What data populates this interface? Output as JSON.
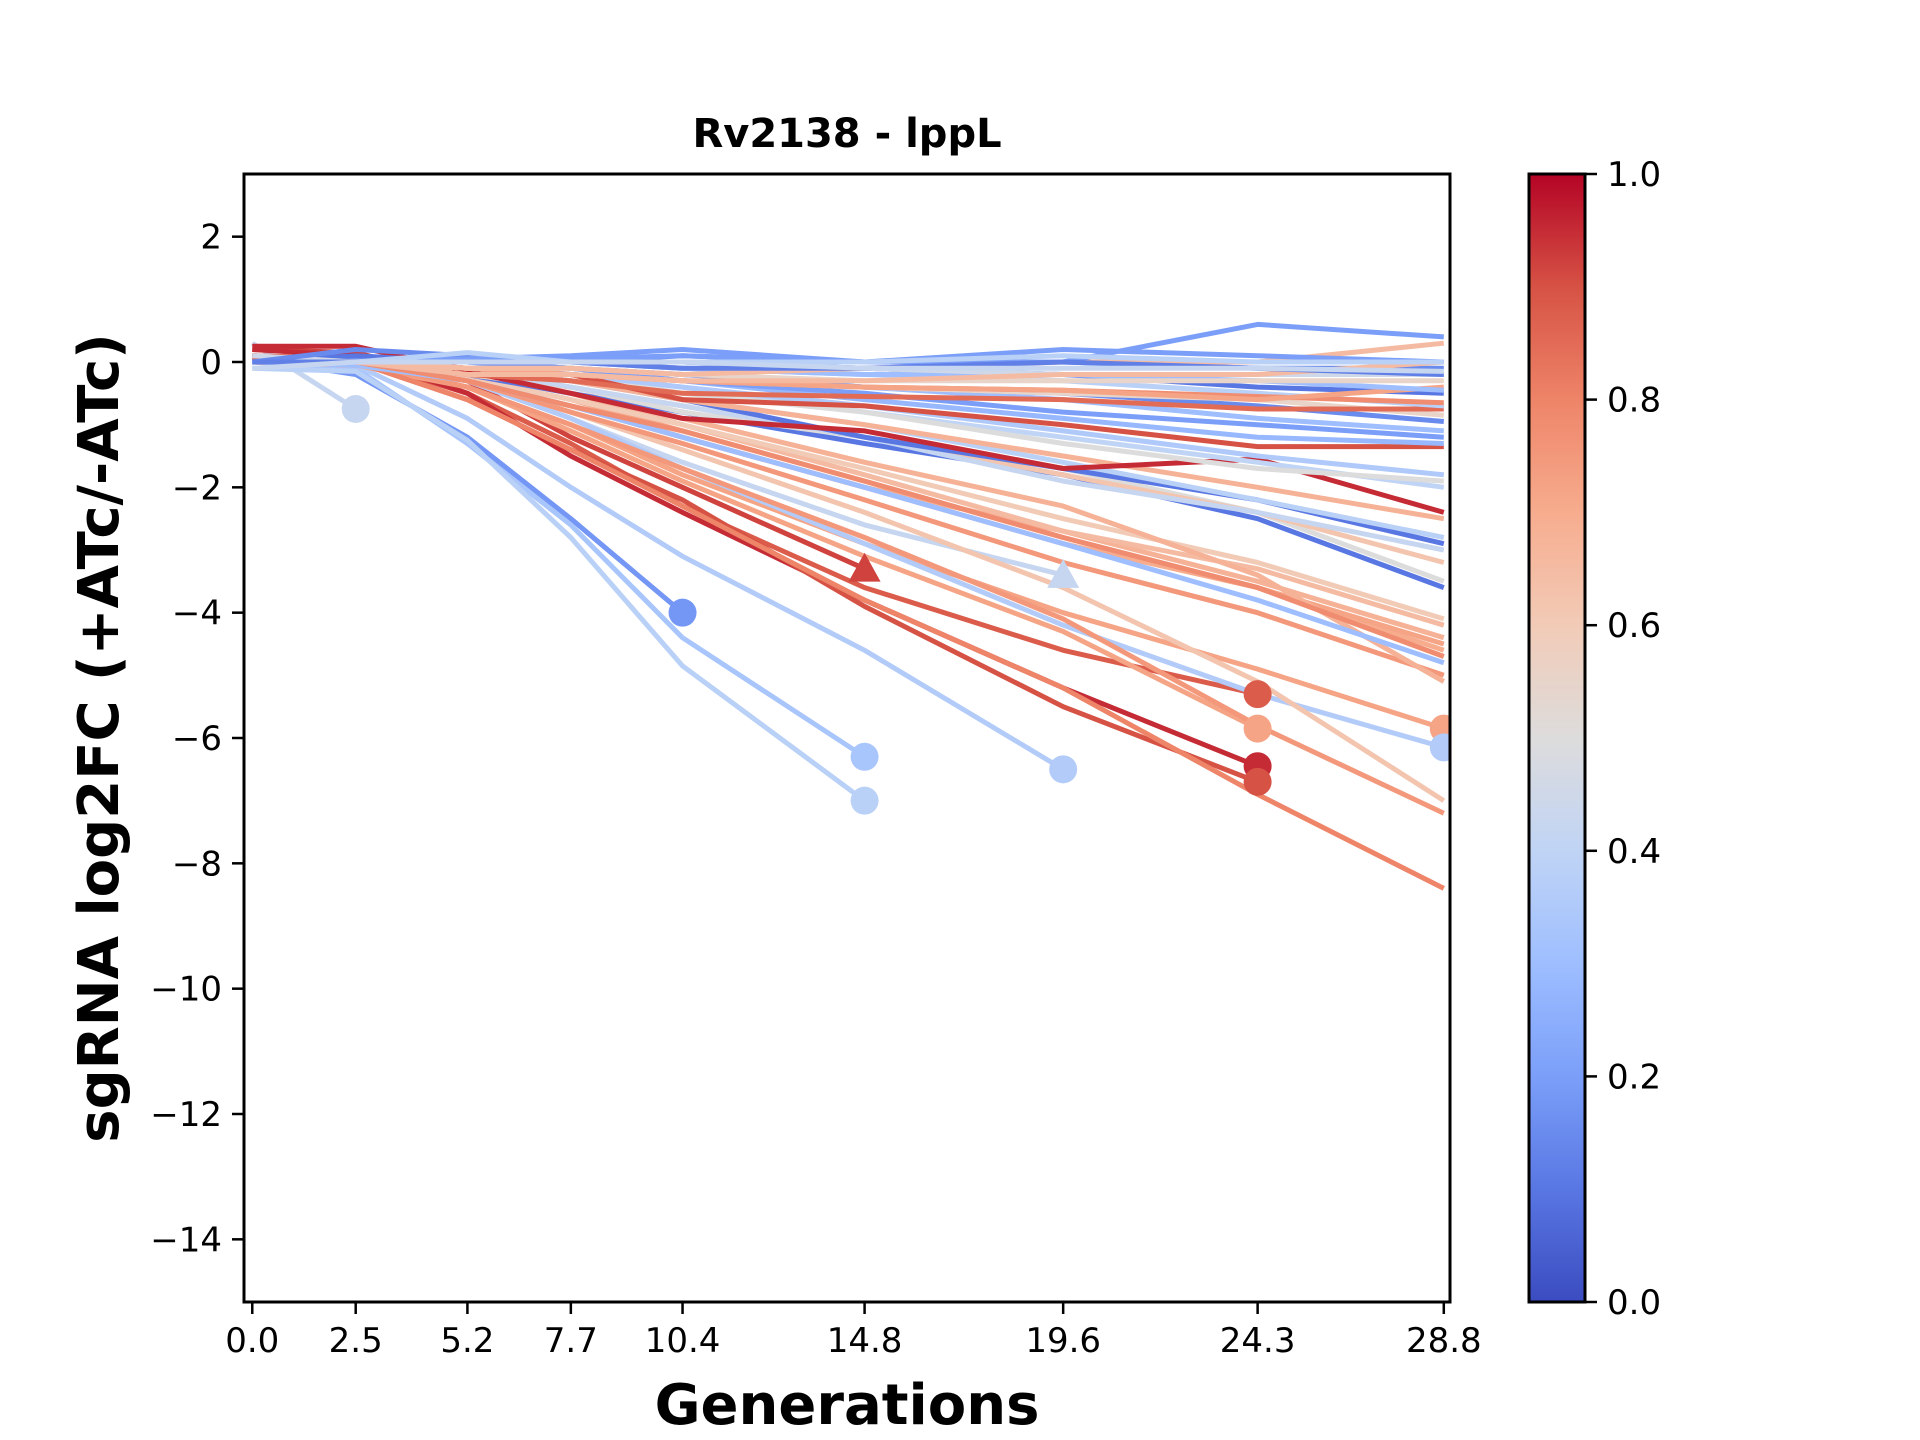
{
  "chart_data": {
    "type": "line",
    "title": "Rv2138 - lppL",
    "xlabel": "Generations",
    "ylabel": "sgRNA log2FC (+ATc/-ATc)",
    "xlim": [
      -0.2,
      28.95
    ],
    "ylim": [
      -15,
      3
    ],
    "x": [
      0.0,
      2.5,
      5.2,
      7.7,
      10.4,
      14.8,
      19.6,
      24.3,
      28.8
    ],
    "xtick_labels": [
      "0.0",
      "2.5",
      "5.2",
      "7.7",
      "10.4",
      "14.8",
      "19.6",
      "24.3",
      "28.8"
    ],
    "yticks": [
      2,
      0,
      -2,
      -4,
      -6,
      -8,
      -10,
      -12,
      -14
    ],
    "ytick_labels": [
      "2",
      "0",
      "−2",
      "−4",
      "−6",
      "−8",
      "−10",
      "−12",
      "−14"
    ],
    "grid": false,
    "legend": "none",
    "colorbar": {
      "colormap": "coolwarm",
      "range": [
        0.0,
        1.0
      ],
      "ticks": [
        0.0,
        0.2,
        0.4,
        0.6,
        0.8,
        1.0
      ],
      "tick_labels": [
        "0.0",
        "0.2",
        "0.4",
        "0.6",
        "0.8",
        "1.0"
      ],
      "stops": [
        [
          0.0,
          "#3b4cc0"
        ],
        [
          0.1,
          "#5977e3"
        ],
        [
          0.2,
          "#7b9ff9"
        ],
        [
          0.3,
          "#9ebeff"
        ],
        [
          0.4,
          "#c0d4f5"
        ],
        [
          0.5,
          "#dddcdc"
        ],
        [
          0.6,
          "#f2cbb7"
        ],
        [
          0.7,
          "#f7ac8e"
        ],
        [
          0.8,
          "#ee8468"
        ],
        [
          0.9,
          "#d65244"
        ],
        [
          1.0,
          "#b40426"
        ]
      ]
    },
    "series": [
      {
        "c": 0.42,
        "y": [
          0.3,
          -0.75
        ],
        "marker": "o"
      },
      {
        "c": 0.18,
        "y": [
          0.05,
          -0.2,
          -1.2,
          -2.5,
          -4.0
        ],
        "marker": "o"
      },
      {
        "c": 0.33,
        "y": [
          0.0,
          -0.1,
          -1.3,
          -2.6,
          -4.4,
          -6.3
        ],
        "marker": "o"
      },
      {
        "c": 0.38,
        "y": [
          -0.1,
          -0.15,
          -1.25,
          -2.8,
          -4.85,
          -7.0
        ],
        "marker": "o"
      },
      {
        "c": 0.36,
        "y": [
          0.0,
          -0.05,
          -0.9,
          -2.0,
          -3.1,
          -4.6,
          -6.5
        ],
        "marker": "o"
      },
      {
        "c": 0.92,
        "y": [
          0.2,
          0.15,
          -0.3,
          -1.2,
          -2.0,
          -3.3
        ],
        "marker": "^"
      },
      {
        "c": 0.42,
        "y": [
          0.1,
          0.0,
          -0.3,
          -0.9,
          -1.6,
          -2.6,
          -3.4
        ],
        "marker": "^"
      },
      {
        "c": 0.88,
        "y": [
          0.1,
          0.05,
          -0.5,
          -1.3,
          -2.3,
          -3.6,
          -4.6,
          -5.3
        ],
        "marker": "o"
      },
      {
        "c": 0.72,
        "y": [
          0.05,
          0.0,
          -0.4,
          -1.1,
          -1.9,
          -3.1,
          -4.3,
          -5.85
        ],
        "marker": "o"
      },
      {
        "c": 0.95,
        "y": [
          0.2,
          0.1,
          -0.5,
          -1.5,
          -2.4,
          -3.8,
          -5.2,
          -6.45
        ],
        "marker": "o"
      },
      {
        "c": 0.9,
        "y": [
          0.1,
          0.0,
          -0.6,
          -1.4,
          -2.2,
          -3.9,
          -5.5,
          -6.7
        ],
        "marker": "o"
      },
      {
        "c": 0.72,
        "y": [
          0.0,
          -0.05,
          -0.4,
          -1.0,
          -1.8,
          -2.9,
          -4.0,
          -4.9,
          -5.85
        ],
        "marker": "o"
      },
      {
        "c": 0.36,
        "y": [
          0.0,
          0.0,
          -0.3,
          -0.9,
          -1.7,
          -2.9,
          -4.2,
          -5.3,
          -6.15
        ],
        "marker": "o"
      },
      {
        "c": 0.8,
        "y": [
          0.1,
          0.0,
          -0.6,
          -1.4,
          -2.3,
          -3.8,
          -5.2,
          -6.9,
          -8.4
        ]
      },
      {
        "c": 0.75,
        "y": [
          0.05,
          0.0,
          -0.4,
          -1.0,
          -1.7,
          -2.8,
          -4.1,
          -5.8,
          -7.2
        ]
      },
      {
        "c": 0.62,
        "y": [
          0.0,
          0.0,
          -0.3,
          -0.8,
          -1.4,
          -2.4,
          -3.6,
          -5.1,
          -7.0
        ]
      },
      {
        "c": 0.75,
        "y": [
          0.0,
          -0.05,
          -0.3,
          -0.8,
          -1.3,
          -2.2,
          -3.2,
          -4.0,
          -5.0
        ]
      },
      {
        "c": 0.7,
        "y": [
          0.05,
          0.0,
          -0.3,
          -0.7,
          -1.2,
          -2.0,
          -2.9,
          -3.6,
          -4.6
        ]
      },
      {
        "c": 0.72,
        "y": [
          0.0,
          0.0,
          -0.25,
          -0.6,
          -1.1,
          -1.9,
          -2.8,
          -3.6,
          -4.5
        ]
      },
      {
        "c": 0.68,
        "y": [
          0.0,
          -0.05,
          -0.3,
          -0.7,
          -1.2,
          -2.0,
          -2.7,
          -3.5,
          -4.4
        ]
      },
      {
        "c": 0.65,
        "y": [
          0.0,
          0.0,
          -0.2,
          -0.5,
          -1.0,
          -1.8,
          -2.7,
          -3.3,
          -4.2
        ]
      },
      {
        "c": 0.6,
        "y": [
          0.0,
          0.0,
          -0.25,
          -0.6,
          -1.0,
          -1.7,
          -2.5,
          -3.2,
          -4.1
        ]
      },
      {
        "c": 0.68,
        "y": [
          0.05,
          0.0,
          -0.2,
          -0.5,
          -0.9,
          -1.6,
          -2.3,
          -3.4,
          -5.1
        ]
      },
      {
        "c": 0.3,
        "y": [
          0.0,
          -0.05,
          -0.3,
          -0.7,
          -1.2,
          -2.0,
          -2.9,
          -3.8,
          -4.8
        ]
      },
      {
        "c": 0.78,
        "y": [
          0.0,
          0.0,
          -0.3,
          -0.7,
          -1.1,
          -1.9,
          -2.8,
          -3.6,
          -4.7
        ]
      },
      {
        "c": 0.1,
        "y": [
          0.0,
          0.0,
          -0.2,
          -0.5,
          -0.8,
          -1.3,
          -1.8,
          -2.5,
          -3.6
        ]
      },
      {
        "c": 0.5,
        "y": [
          0.0,
          0.0,
          -0.2,
          -0.4,
          -0.8,
          -1.2,
          -1.7,
          -2.4,
          -3.5
        ]
      },
      {
        "c": 0.62,
        "y": [
          0.0,
          0.0,
          -0.2,
          -0.4,
          -0.7,
          -1.2,
          -1.8,
          -2.4,
          -3.2
        ]
      },
      {
        "c": 0.42,
        "y": [
          0.0,
          0.0,
          -0.1,
          -0.4,
          -0.7,
          -1.2,
          -1.9,
          -2.4,
          -3.0
        ]
      },
      {
        "c": 0.1,
        "y": [
          0.0,
          0.0,
          -0.1,
          -0.3,
          -0.6,
          -1.2,
          -1.7,
          -2.2,
          -2.9
        ]
      },
      {
        "c": 0.38,
        "y": [
          0.0,
          0.0,
          -0.1,
          -0.3,
          -0.6,
          -1.0,
          -1.6,
          -2.2,
          -2.8
        ]
      },
      {
        "c": 0.68,
        "y": [
          0.0,
          0.0,
          -0.1,
          -0.3,
          -0.6,
          -1.0,
          -1.5,
          -2.0,
          -2.5
        ]
      },
      {
        "c": 0.95,
        "y": [
          0.25,
          0.25,
          -0.15,
          -0.5,
          -0.9,
          -1.1,
          -1.7,
          -1.55,
          -2.4
        ]
      },
      {
        "c": 0.4,
        "y": [
          0.0,
          0.0,
          -0.1,
          -0.2,
          -0.4,
          -0.8,
          -1.2,
          -1.6,
          -2.0
        ]
      },
      {
        "c": 0.5,
        "y": [
          0.0,
          0.0,
          -0.1,
          -0.2,
          -0.5,
          -0.8,
          -1.3,
          -1.7,
          -1.9
        ]
      },
      {
        "c": 0.35,
        "y": [
          0.0,
          0.0,
          0.0,
          -0.2,
          -0.4,
          -0.7,
          -1.1,
          -1.5,
          -1.8
        ]
      },
      {
        "c": 0.9,
        "y": [
          0.05,
          0.05,
          -0.1,
          -0.2,
          -0.6,
          -0.7,
          -1.0,
          -1.35,
          -1.35
        ]
      },
      {
        "c": 0.28,
        "y": [
          0.0,
          0.0,
          0.0,
          -0.1,
          -0.3,
          -0.6,
          -0.9,
          -1.2,
          -1.3
        ]
      },
      {
        "c": 0.2,
        "y": [
          0.05,
          0.05,
          0.0,
          -0.1,
          -0.3,
          -0.5,
          -0.8,
          -1.0,
          -1.2
        ]
      },
      {
        "c": 0.3,
        "y": [
          0.0,
          0.0,
          0.0,
          -0.1,
          -0.2,
          -0.4,
          -0.6,
          -0.9,
          -1.1
        ]
      },
      {
        "c": 0.15,
        "y": [
          0.0,
          0.0,
          0.0,
          -0.1,
          -0.2,
          -0.4,
          -0.5,
          -0.7,
          -0.95
        ]
      },
      {
        "c": 0.55,
        "y": [
          0.0,
          0.0,
          -0.1,
          -0.2,
          -0.3,
          -0.4,
          -0.5,
          -0.6,
          -0.85
        ]
      },
      {
        "c": 0.85,
        "y": [
          0.05,
          0.0,
          -0.2,
          -0.3,
          -0.5,
          -0.55,
          -0.6,
          -0.75,
          -0.75
        ]
      },
      {
        "c": 0.38,
        "y": [
          0.0,
          0.0,
          0.0,
          0.0,
          -0.1,
          -0.2,
          -0.3,
          -0.5,
          -0.7
        ]
      },
      {
        "c": 0.78,
        "y": [
          0.0,
          0.0,
          -0.1,
          -0.2,
          -0.3,
          -0.4,
          -0.45,
          -0.55,
          -0.65
        ]
      },
      {
        "c": 0.1,
        "y": [
          0.0,
          0.1,
          0.0,
          0.0,
          0.0,
          -0.1,
          -0.2,
          -0.4,
          -0.5
        ]
      },
      {
        "c": 0.72,
        "y": [
          0.0,
          0.0,
          -0.1,
          -0.2,
          -0.3,
          -0.4,
          -0.45,
          -0.6,
          -0.4
        ]
      },
      {
        "c": 0.3,
        "y": [
          0.0,
          0.0,
          0.0,
          0.0,
          -0.1,
          -0.2,
          -0.2,
          -0.3,
          -0.45
        ]
      },
      {
        "c": 0.55,
        "y": [
          0.0,
          0.0,
          -0.1,
          -0.1,
          -0.2,
          -0.3,
          -0.3,
          -0.3,
          -0.3
        ]
      },
      {
        "c": 0.45,
        "y": [
          0.1,
          0.0,
          0.0,
          0.0,
          -0.1,
          -0.1,
          -0.2,
          -0.2,
          -0.2
        ]
      },
      {
        "c": 0.15,
        "y": [
          0.0,
          0.2,
          0.1,
          0.0,
          0.1,
          0.0,
          0.0,
          -0.1,
          -0.1
        ]
      },
      {
        "c": 0.65,
        "y": [
          0.0,
          0.0,
          -0.1,
          -0.1,
          -0.2,
          -0.1,
          0.0,
          0.0,
          0.3
        ]
      },
      {
        "c": 0.65,
        "y": [
          0.0,
          0.0,
          -0.2,
          -0.2,
          -0.3,
          -0.3,
          -0.2,
          -0.2,
          0.0
        ]
      },
      {
        "c": 0.2,
        "y": [
          0.0,
          0.0,
          0.0,
          0.05,
          0.1,
          0.0,
          0.2,
          0.1,
          0.0
        ]
      },
      {
        "c": 0.2,
        "y": [
          0.0,
          0.0,
          0.05,
          0.1,
          0.2,
          0.0,
          0.0,
          0.6,
          0.4
        ]
      },
      {
        "c": 0.38,
        "y": [
          0.0,
          0.0,
          0.15,
          0.0,
          0.0,
          0.0,
          0.1,
          0.0,
          0.0
        ]
      },
      {
        "c": 0.12,
        "y": [
          0.0,
          0.0,
          0.0,
          0.0,
          -0.1,
          -0.1,
          0.0,
          -0.1,
          -0.2
        ]
      },
      {
        "c": 0.42,
        "y": [
          -0.1,
          0.0,
          0.0,
          0.0,
          0.0,
          -0.1,
          -0.1,
          -0.1,
          -0.15
        ]
      }
    ]
  }
}
